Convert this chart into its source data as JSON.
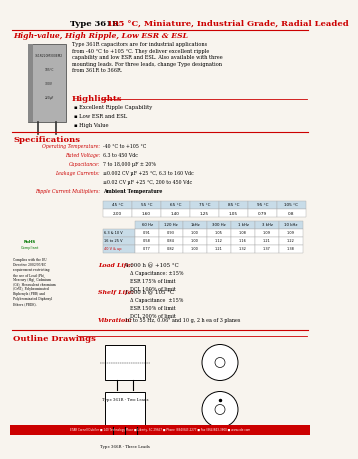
{
  "title_black": "Type 361R ",
  "title_red": "105 °C, Miniature, Industrial Grade, Radial Leaded",
  "subtitle_red": "High-value, High Ripple, Low ESR & ESL",
  "description": "Type 361R capacitors are for industrial applications\nfrom -40 °C to +105 °C. They deliver excellent ripple\ncapability and low ESR and ESL. Also available with three\nmounting leads. For three leads, change Type designation\nfrom 361R to 366R.",
  "highlights_title": "Highlights",
  "highlights": [
    "Excellent Ripple Capability",
    "Low ESR and ESL",
    "High Value"
  ],
  "specs_title": "Specifications",
  "op_temp_label": "Operating Temperature:",
  "op_temp_val": "-40 °C to +105 °C",
  "rated_v_label": "Rated Voltage:",
  "rated_v_val": "6.3 to 450 Vdc",
  "cap_label": "Capacitance:",
  "cap_val": "7 to 18,000 µF ± 20%",
  "leakage_label": "Leakage Currents:",
  "leakage_val1": "≤0.002 CV µF +25 °C, 6.3 to 160 Vdc",
  "leakage_val2": "≤0.02 CV µF +25 °C, 200 to 450 Vdc",
  "ripple_label": "Ripple Current Multipliers:",
  "ripple_val": "Ambient Temperature",
  "temp_headers": [
    "45 °C",
    "55 °C",
    "65 °C",
    "75 °C",
    "85 °C",
    "95 °C",
    "105 °C"
  ],
  "temp_values": [
    "2.00",
    "1.60",
    "1.40",
    "1.25",
    "1.05",
    "0.79",
    "0.8"
  ],
  "freq_headers": [
    "60 Hz",
    "120 Hz",
    "1kHz",
    "300 Hz",
    "1 kHz",
    "3 kHz",
    "10 kHz"
  ],
  "freq_row1_label": "6.3 & 10 V",
  "freq_row1": [
    "0.91",
    "0.93",
    "1.00",
    "1.05",
    "1.08",
    "1.09",
    "1.09"
  ],
  "freq_row2_label": "16 to 25 V",
  "freq_row2": [
    "0.58",
    "0.84",
    "1.00",
    "1.12",
    "1.16",
    "1.21",
    "1.22"
  ],
  "freq_row3_label": "40 V & up",
  "freq_row3": [
    "0.77",
    "0.82",
    "1.00",
    "1.21",
    "1.32",
    "1.37",
    "1.38"
  ],
  "load_life_label": "Load Life:",
  "load_life_val": "4,000 h @ +105 °C",
  "load_life_d1": "Δ Capacitance: ±15%",
  "load_life_d2": "ESR 175% of limit",
  "load_life_d3": "DCL 100% of limit",
  "shelf_life_label": "Shelf Life:",
  "shelf_life_val": "1,000 h @ 105 °C",
  "shelf_life_d1": "Δ Capacitance  ±15%",
  "shelf_life_d2": "ESR 150% of limit",
  "shelf_life_d3": "DCL 200% of limit",
  "vibration_label": "Vibration:",
  "vibration_val": "10 to 55 Hz, 0.06\" and 10 g, 2 h ea of 3 planes",
  "outline_title": "Outline Drawings",
  "footer": "ETAR Cornell Dubilier ■ 140 Technology Place ■ Liberty, SC 29657 ■ Phone (864)843-2277 ■ Fax (864)843-3800 ■ www.cde.com",
  "red": "#cc0000",
  "bg": "#f8f4ee",
  "table_hdr_bg": "#c8dce8",
  "table_val_bg": "#e8f0f4"
}
